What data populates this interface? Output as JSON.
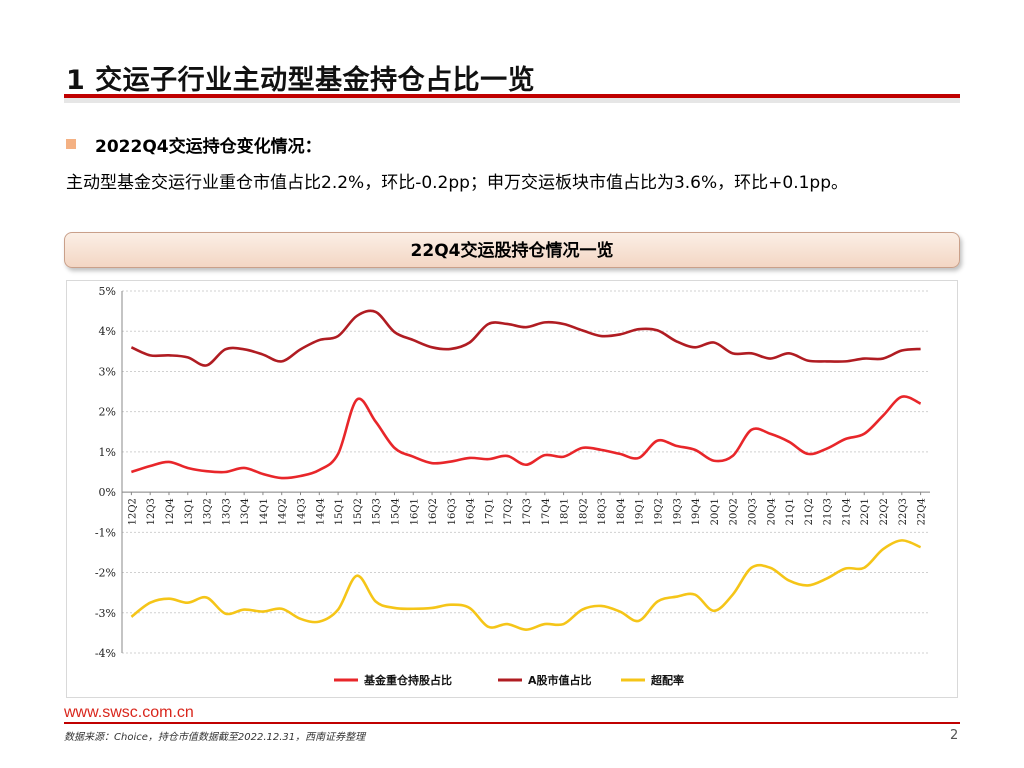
{
  "slide": {
    "title": "1 交运子行业主动型基金持仓占比一览",
    "subheading": "2022Q4交运持仓变化情况：",
    "body": "主动型基金交运行业重仓市值占比2.2%，环比-0.2pp；申万交运板块市值占比为3.6%，环比+0.1pp。",
    "banner": "22Q4交运股持仓情况一览",
    "footer_url": "www.swsc.com.cn",
    "source_note": "数据来源：Choice，持仓市值数据截至2022.12.31，西南证券整理",
    "page_number": "2"
  },
  "colors": {
    "fund": "#e8262a",
    "ashare": "#b01c22",
    "excess": "#f5c518",
    "accent": "#c00000"
  },
  "chart_data": {
    "type": "line",
    "title": "22Q4交运股持仓情况一览",
    "xlabel": "",
    "ylabel": "",
    "ylim": [
      -4,
      5
    ],
    "yticks": [
      "5%",
      "4%",
      "3%",
      "2%",
      "1%",
      "0%",
      "-1%",
      "-2%",
      "-3%",
      "-4%"
    ],
    "grid": true,
    "legend": "bottom",
    "categories": [
      "12Q2",
      "12Q3",
      "12Q4",
      "13Q1",
      "13Q2",
      "13Q3",
      "13Q4",
      "14Q1",
      "14Q2",
      "14Q3",
      "14Q4",
      "15Q1",
      "15Q2",
      "15Q3",
      "15Q4",
      "16Q1",
      "16Q2",
      "16Q3",
      "16Q4",
      "17Q1",
      "17Q2",
      "17Q3",
      "17Q4",
      "18Q1",
      "18Q2",
      "18Q3",
      "18Q4",
      "19Q1",
      "19Q2",
      "19Q3",
      "19Q4",
      "20Q1",
      "20Q2",
      "20Q3",
      "20Q4",
      "21Q1",
      "21Q2",
      "21Q3",
      "21Q4",
      "22Q1",
      "22Q2",
      "22Q3",
      "22Q4"
    ],
    "series": [
      {
        "name": "基金重仓持股占比",
        "color": "#e8262a",
        "values": [
          0.5,
          0.65,
          0.75,
          0.6,
          0.52,
          0.5,
          0.6,
          0.45,
          0.35,
          0.4,
          0.55,
          0.95,
          2.3,
          1.75,
          1.1,
          0.88,
          0.72,
          0.76,
          0.85,
          0.82,
          0.9,
          0.68,
          0.92,
          0.88,
          1.1,
          1.05,
          0.95,
          0.85,
          1.28,
          1.15,
          1.05,
          0.78,
          0.9,
          1.55,
          1.45,
          1.25,
          0.95,
          1.08,
          1.32,
          1.45,
          1.9,
          2.37,
          2.2
        ]
      },
      {
        "name": "A股市值占比",
        "color": "#b01c22",
        "values": [
          3.6,
          3.4,
          3.4,
          3.35,
          3.15,
          3.55,
          3.55,
          3.42,
          3.25,
          3.55,
          3.78,
          3.88,
          4.38,
          4.48,
          3.98,
          3.78,
          3.6,
          3.56,
          3.72,
          4.18,
          4.18,
          4.1,
          4.22,
          4.18,
          4.02,
          3.88,
          3.92,
          4.05,
          4.02,
          3.75,
          3.6,
          3.72,
          3.45,
          3.45,
          3.32,
          3.45,
          3.27,
          3.25,
          3.25,
          3.32,
          3.32,
          3.52,
          3.56
        ]
      },
      {
        "name": "超配率",
        "color": "#f5c518",
        "values": [
          -3.1,
          -2.75,
          -2.65,
          -2.75,
          -2.62,
          -3.02,
          -2.92,
          -2.97,
          -2.9,
          -3.15,
          -3.22,
          -2.92,
          -2.08,
          -2.72,
          -2.88,
          -2.9,
          -2.88,
          -2.8,
          -2.88,
          -3.35,
          -3.28,
          -3.42,
          -3.28,
          -3.28,
          -2.92,
          -2.83,
          -2.97,
          -3.2,
          -2.72,
          -2.6,
          -2.55,
          -2.95,
          -2.55,
          -1.88,
          -1.88,
          -2.2,
          -2.32,
          -2.15,
          -1.9,
          -1.88,
          -1.42,
          -1.2,
          -1.37
        ]
      }
    ]
  }
}
